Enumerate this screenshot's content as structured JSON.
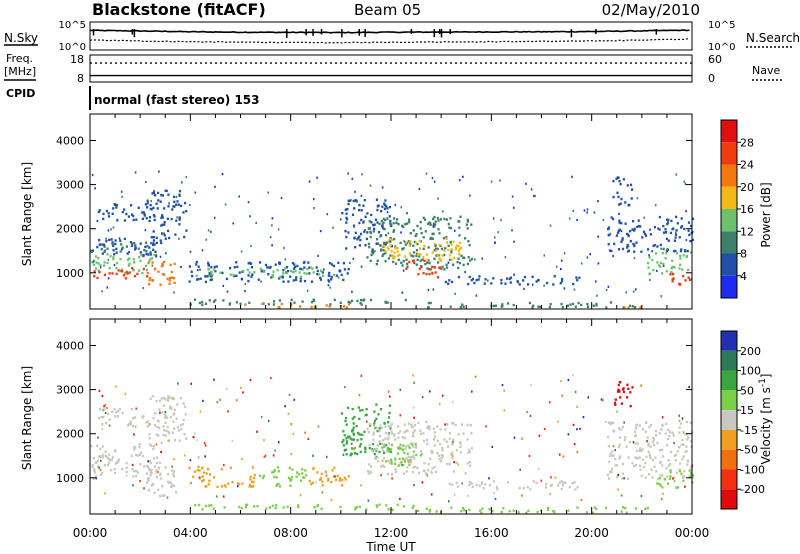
{
  "header": {
    "station": "Blackstone (fitACF)",
    "beam": "Beam 05",
    "date": "02/May/2010"
  },
  "panel_labels": {
    "nsky": "N.Sky",
    "nsearch": "N.Search",
    "freq_line1": "Freq.",
    "freq_line2": "[MHz]",
    "nave": "Nave",
    "cpid": "CPID",
    "cpid_value": "normal (fast stereo) 153"
  },
  "colors": {
    "power_scale": [
      "#1f2cf0",
      "#2050a8",
      "#3c7f6a",
      "#6cc26c",
      "#f2b81a",
      "#f07a10",
      "#f03a10",
      "#e01010"
    ],
    "velocity_scale": [
      "#2030b0",
      "#2c7a58",
      "#3aa640",
      "#7ad048",
      "#c8c8c0",
      "#f0a020",
      "#f07010",
      "#f03010",
      "#e00a0a"
    ]
  },
  "chart_data": [
    {
      "type": "line",
      "title": "",
      "left_axis": {
        "label": "N.Sky",
        "ticks": [
          "10^5",
          "10^0"
        ]
      },
      "right_axis": {
        "label": "N.Search",
        "ticks": [
          "10^5",
          "10^0"
        ]
      },
      "series": [
        {
          "name": "N.Sky",
          "style": "solid",
          "x": [
            0,
            2,
            4,
            6,
            8,
            10,
            12,
            14,
            16,
            18,
            20,
            22,
            24
          ],
          "values": [
            3200,
            2500,
            1800,
            1500,
            1400,
            1300,
            1500,
            1600,
            1700,
            1800,
            2000,
            2600,
            3500
          ]
        },
        {
          "name": "N.Search",
          "style": "dotted",
          "x": [
            0,
            2,
            4,
            6,
            8,
            10,
            12,
            14,
            16,
            18,
            20,
            22,
            24
          ],
          "values": [
            60,
            40,
            30,
            25,
            22,
            20,
            25,
            28,
            30,
            35,
            40,
            60,
            90
          ]
        }
      ]
    },
    {
      "type": "line",
      "title": "",
      "left_axis": {
        "label": "Freq. [MHz]",
        "ticks": [
          "18",
          "8"
        ],
        "ylim": [
          8,
          18
        ]
      },
      "right_axis": {
        "label": "Nave",
        "ticks": [
          "60",
          "0"
        ],
        "ylim": [
          0,
          60
        ]
      },
      "series": [
        {
          "name": "Freq.",
          "style": "solid",
          "x": [
            0,
            24
          ],
          "values": [
            10.4,
            10.4
          ]
        },
        {
          "name": "Nave",
          "style": "dotted",
          "x": [
            0,
            24
          ],
          "values": [
            42,
            42
          ]
        }
      ]
    },
    {
      "type": "heatmap",
      "title": "",
      "xlabel": "Time UT",
      "ylabel": "Slant Range [km]",
      "colorbar_label": "Power [dB]",
      "xlim": [
        0,
        24
      ],
      "ylim": [
        180,
        4600
      ],
      "yticks": [
        "1000",
        "2000",
        "3000",
        "4000"
      ],
      "xticks": [
        "00:00",
        "04:00",
        "08:00",
        "12:00",
        "16:00",
        "20:00",
        "00:00"
      ],
      "colorbar_ticks": [
        "4",
        "8",
        "12",
        "16",
        "20",
        "24",
        "28"
      ],
      "bins": [
        0,
        4,
        8,
        12,
        16,
        20,
        24,
        28,
        32
      ],
      "blobs": [
        {
          "t0": 0.0,
          "t1": 2.8,
          "r0": 1400,
          "r1": 1800,
          "v": 4
        },
        {
          "t0": 0.0,
          "t1": 2.4,
          "r0": 1500,
          "r1": 1750,
          "v": 11
        },
        {
          "t0": 0.0,
          "t1": 2.6,
          "r0": 1000,
          "r1": 1450,
          "v": 14
        },
        {
          "t0": 0.0,
          "t1": 2.3,
          "r0": 900,
          "r1": 1150,
          "v": 27
        },
        {
          "t0": 2.2,
          "t1": 3.4,
          "r0": 600,
          "r1": 1300,
          "v": 22
        },
        {
          "t0": 0.3,
          "t1": 2.6,
          "r0": 2200,
          "r1": 2600,
          "v": 5
        },
        {
          "t0": 2.2,
          "t1": 3.8,
          "r0": 1800,
          "r1": 2900,
          "v": 6
        },
        {
          "t0": 3.9,
          "t1": 10.3,
          "r0": 820,
          "r1": 1280,
          "v": 6
        },
        {
          "t0": 4.2,
          "t1": 9.8,
          "r0": 930,
          "r1": 1150,
          "v": 13
        },
        {
          "t0": 3.9,
          "t1": 13.0,
          "r0": 300,
          "r1": 420,
          "v": 9
        },
        {
          "t0": 6.0,
          "t1": 10.5,
          "r0": 240,
          "r1": 330,
          "v": 22
        },
        {
          "t0": 10.0,
          "t1": 12.0,
          "r0": 1500,
          "r1": 2700,
          "v": 7
        },
        {
          "t0": 11.0,
          "t1": 15.2,
          "r0": 1100,
          "r1": 2300,
          "v": 9
        },
        {
          "t0": 11.6,
          "t1": 14.8,
          "r0": 1300,
          "r1": 1800,
          "v": 18
        },
        {
          "t0": 12.5,
          "t1": 14.0,
          "r0": 900,
          "r1": 1300,
          "v": 25
        },
        {
          "t0": 14.0,
          "t1": 19.5,
          "r0": 760,
          "r1": 950,
          "v": 6
        },
        {
          "t0": 13.0,
          "t1": 22.2,
          "r0": 230,
          "r1": 360,
          "v": 8
        },
        {
          "t0": 21.2,
          "t1": 22.3,
          "r0": 230,
          "r1": 300,
          "v": 22
        },
        {
          "t0": 20.6,
          "t1": 24.0,
          "r0": 1500,
          "r1": 2300,
          "v": 7
        },
        {
          "t0": 22.2,
          "t1": 24.0,
          "r0": 1000,
          "r1": 1500,
          "v": 14
        },
        {
          "t0": 23.0,
          "t1": 24.0,
          "r0": 750,
          "r1": 1050,
          "v": 27
        },
        {
          "t0": 20.8,
          "t1": 21.6,
          "r0": 2500,
          "r1": 3200,
          "v": 5
        }
      ]
    },
    {
      "type": "heatmap",
      "title": "",
      "xlabel": "Time UT",
      "ylabel": "Slant Range [km]",
      "colorbar_label": "Velocity [m s^-1]",
      "xlim": [
        0,
        24
      ],
      "ylim": [
        180,
        4600
      ],
      "yticks": [
        "1000",
        "2000",
        "3000",
        "4000"
      ],
      "xticks": [
        "00:00",
        "04:00",
        "08:00",
        "12:00",
        "16:00",
        "20:00",
        "00:00"
      ],
      "colorbar_ticks": [
        "200",
        "100",
        "50",
        "15",
        "-15",
        "-50",
        "-100",
        "-200"
      ],
      "bins": [
        250,
        200,
        100,
        50,
        15,
        -15,
        -50,
        -100,
        -200,
        -250
      ],
      "blobs": [
        {
          "t0": 0.0,
          "t1": 2.8,
          "r0": 1000,
          "r1": 1800,
          "v": 0
        },
        {
          "t0": 0.3,
          "t1": 2.6,
          "r0": 2200,
          "r1": 2600,
          "v": 0
        },
        {
          "t0": 2.2,
          "t1": 3.8,
          "r0": 1800,
          "r1": 2900,
          "v": 0
        },
        {
          "t0": 2.2,
          "t1": 3.4,
          "r0": 600,
          "r1": 1300,
          "v": 0
        },
        {
          "t0": 3.9,
          "t1": 6.6,
          "r0": 820,
          "r1": 1280,
          "v": -30
        },
        {
          "t0": 6.6,
          "t1": 8.6,
          "r0": 820,
          "r1": 1280,
          "v": 30
        },
        {
          "t0": 8.6,
          "t1": 10.3,
          "r0": 820,
          "r1": 1280,
          "v": -30
        },
        {
          "t0": 3.9,
          "t1": 13.0,
          "r0": 300,
          "r1": 420,
          "v": 30
        },
        {
          "t0": 10.0,
          "t1": 12.0,
          "r0": 1500,
          "r1": 2700,
          "v": 60
        },
        {
          "t0": 11.0,
          "t1": 15.2,
          "r0": 1100,
          "r1": 2300,
          "v": 0
        },
        {
          "t0": 11.6,
          "t1": 13.2,
          "r0": 1300,
          "r1": 1800,
          "v": 30
        },
        {
          "t0": 14.0,
          "t1": 19.5,
          "r0": 760,
          "r1": 950,
          "v": 0
        },
        {
          "t0": 13.0,
          "t1": 22.2,
          "r0": 230,
          "r1": 360,
          "v": 30
        },
        {
          "t0": 20.6,
          "t1": 24.0,
          "r0": 1000,
          "r1": 2300,
          "v": 0
        },
        {
          "t0": 22.5,
          "t1": 24.0,
          "r0": 800,
          "r1": 1200,
          "v": 30
        },
        {
          "t0": 20.8,
          "t1": 21.6,
          "r0": 2600,
          "r1": 3200,
          "v": -250
        }
      ]
    }
  ]
}
